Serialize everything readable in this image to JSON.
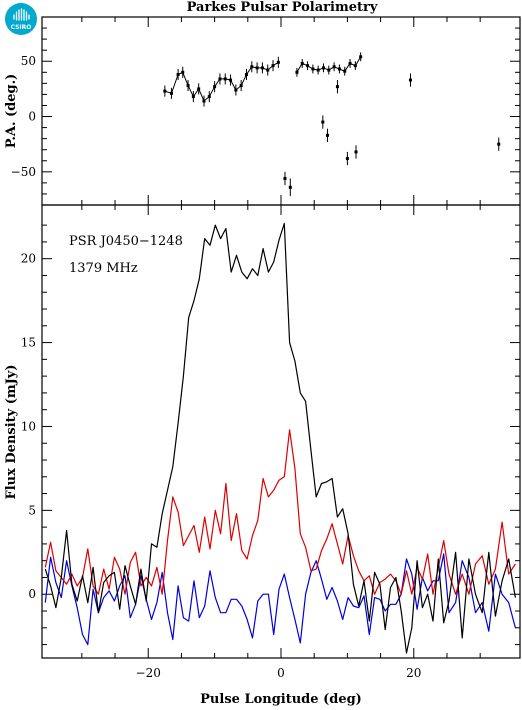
{
  "chart_data": [
    {
      "panel": "top",
      "type": "scatter",
      "title": "Parkes Pulsar Polarimetry",
      "ylabel": "P.A. (deg.)",
      "xlim": [
        -36,
        36
      ],
      "ylim": [
        -80,
        90
      ],
      "yticks": [
        -50,
        0,
        50
      ],
      "yticklabels": [
        "−50",
        "0",
        "50"
      ],
      "colors": {
        "points": "#000000"
      },
      "groups": [
        {
          "x": [
            -17.5,
            -16.5,
            -15.5,
            -14.8,
            -14.0,
            -13.2,
            -12.4,
            -11.6,
            -10.8,
            -10.0,
            -9.2,
            -8.4,
            -7.6,
            -6.8,
            -6.0,
            -5.2,
            -4.4,
            -3.6,
            -2.8,
            -2.0,
            -1.2,
            -0.4
          ],
          "y": [
            23,
            21,
            38,
            40,
            28,
            18,
            25,
            14,
            18,
            27,
            34,
            34,
            33,
            24,
            28,
            38,
            45,
            44,
            44,
            42,
            46,
            49
          ],
          "err": [
            5,
            5,
            5,
            5,
            5,
            5,
            5,
            5,
            5,
            5,
            5,
            5,
            5,
            5,
            5,
            5,
            5,
            5,
            5,
            5,
            5,
            5
          ]
        },
        {
          "x": [
            2.4,
            3.2,
            4.0,
            4.8,
            5.6,
            6.4,
            7.2,
            8.0,
            8.8,
            9.6,
            10.4,
            11.2,
            12.0
          ],
          "y": [
            40,
            48,
            46,
            43,
            42,
            44,
            42,
            45,
            43,
            41,
            48,
            46,
            54
          ],
          "err": [
            4,
            4,
            4,
            4,
            4,
            4,
            4,
            4,
            4,
            4,
            4,
            4,
            4
          ]
        }
      ],
      "isolated": {
        "x": [
          0.6,
          1.4,
          6.3,
          7.0,
          8.5,
          10.0,
          11.3,
          19.5,
          32.8
        ],
        "y": [
          -56,
          -64,
          -5,
          -17,
          27,
          -38,
          -32,
          33,
          -25
        ],
        "err": [
          6,
          8,
          6,
          6,
          6,
          6,
          6,
          6,
          6
        ]
      }
    },
    {
      "panel": "bottom",
      "type": "line",
      "xlabel": "Pulse Longitude (deg)",
      "ylabel": "Flux Density (mJy)",
      "xlim": [
        -36,
        36
      ],
      "ylim": [
        -3.8,
        23.2
      ],
      "xticks": [
        -20,
        0,
        20
      ],
      "xticklabels": [
        "−20",
        "0",
        "20"
      ],
      "yticks": [
        0,
        5,
        10,
        15,
        20
      ],
      "yticklabels": [
        "0",
        "5",
        "10",
        "15",
        "20"
      ],
      "annotations": [
        "PSR J0450−1248",
        "1379 MHz"
      ],
      "series": [
        {
          "color": "#000000",
          "x": [
            -35.5,
            -34.7,
            -33.9,
            -33.1,
            -32.3,
            -31.5,
            -30.7,
            -29.9,
            -29.1,
            -28.3,
            -27.5,
            -26.7,
            -25.9,
            -25.1,
            -24.3,
            -23.5,
            -22.7,
            -21.9,
            -21.1,
            -20.3,
            -19.5,
            -18.7,
            -17.9,
            -17.1,
            -16.3,
            -15.5,
            -14.7,
            -13.9,
            -13.1,
            -12.3,
            -11.5,
            -10.7,
            -9.9,
            -9.1,
            -8.3,
            -7.5,
            -6.7,
            -5.9,
            -5.1,
            -4.3,
            -3.5,
            -2.7,
            -1.9,
            -1.1,
            -0.3,
            0.5,
            1.3,
            2.1,
            2.9,
            3.7,
            4.5,
            5.3,
            6.1,
            6.9,
            7.7,
            8.5,
            9.3,
            10.1,
            10.9,
            11.7,
            12.5,
            13.3,
            14.1,
            14.9,
            15.7,
            16.5,
            17.3,
            18.1,
            18.9,
            19.7,
            20.5,
            21.3,
            22.1,
            22.9,
            23.7,
            24.5,
            25.3,
            26.3,
            27.3,
            28.3,
            29.3,
            30.3,
            31.3,
            32.3,
            33.3,
            34.3,
            35.3
          ],
          "y": [
            1.5,
            0.5,
            -0.8,
            1.0,
            3.8,
            0.6,
            -0.4,
            1.1,
            -0.5,
            1.6,
            -1.1,
            0.7,
            1.1,
            1.3,
            -0.9,
            1.7,
            0.5,
            -0.6,
            1.5,
            -0.4,
            3.0,
            2.8,
            4.8,
            6.2,
            7.6,
            10.2,
            13.0,
            16.5,
            17.5,
            18.8,
            21.2,
            20.8,
            22.0,
            21.2,
            21.8,
            19.2,
            20.2,
            19.2,
            18.8,
            19.4,
            19.0,
            20.6,
            19.2,
            19.8,
            21.1,
            22.1,
            15.0,
            13.9,
            12.0,
            11.5,
            8.6,
            5.8,
            6.6,
            6.7,
            6.9,
            4.6,
            5.1,
            3.6,
            0.6,
            -0.7,
            0.8,
            -1.6,
            1.3,
            0.6,
            -2.1,
            0.4,
            1.0,
            -1.0,
            -3.5,
            -2.0,
            2.0,
            -0.8,
            0.0,
            -1.6,
            2.1,
            -1.7,
            -0.4,
            2.5,
            -2.6,
            2.1,
            0.0,
            -1.1,
            2.5,
            -1.3,
            0.8,
            2.1,
            -0.2
          ]
        },
        {
          "color": "#dd0000",
          "x": [
            -35.5,
            -34.7,
            -33.9,
            -33.1,
            -32.3,
            -31.5,
            -30.7,
            -29.9,
            -29.1,
            -28.3,
            -27.5,
            -26.7,
            -25.9,
            -25.1,
            -24.3,
            -23.5,
            -22.7,
            -21.9,
            -21.1,
            -20.3,
            -19.5,
            -18.7,
            -17.9,
            -17.1,
            -16.3,
            -15.5,
            -14.7,
            -13.9,
            -13.1,
            -12.3,
            -11.5,
            -10.7,
            -9.9,
            -9.1,
            -8.3,
            -7.5,
            -6.7,
            -5.9,
            -5.1,
            -4.3,
            -3.5,
            -2.7,
            -1.9,
            -1.1,
            -0.3,
            0.5,
            1.3,
            2.1,
            2.9,
            3.7,
            4.5,
            5.3,
            6.1,
            6.9,
            7.7,
            8.5,
            9.3,
            10.1,
            10.9,
            11.7,
            12.5,
            13.3,
            14.1,
            14.9,
            15.7,
            16.5,
            17.3,
            18.1,
            18.9,
            19.7,
            20.5,
            21.3,
            22.1,
            22.9,
            23.7,
            24.5,
            25.3,
            26.3,
            27.3,
            28.3,
            29.3,
            30.3,
            31.3,
            32.3,
            33.3,
            34.3,
            35.3
          ],
          "y": [
            1.6,
            3.1,
            1.4,
            1.0,
            0.6,
            1.2,
            0.5,
            1.0,
            2.7,
            0.5,
            0.0,
            1.5,
            0.3,
            2.2,
            1.5,
            0.0,
            1.9,
            2.5,
            0.5,
            1.0,
            0.5,
            1.6,
            0.0,
            3.2,
            5.8,
            4.9,
            2.9,
            3.5,
            4.1,
            2.5,
            4.6,
            2.7,
            5.0,
            3.6,
            6.6,
            3.2,
            4.8,
            2.6,
            2.1,
            3.5,
            4.4,
            6.9,
            5.8,
            6.2,
            6.8,
            7.0,
            9.8,
            7.5,
            3.6,
            2.8,
            1.4,
            1.5,
            2.6,
            3.3,
            4.2,
            3.0,
            1.8,
            3.5,
            2.3,
            1.4,
            0.8,
            1.1,
            0.0,
            0.7,
            0.9,
            1.2,
            0.8,
            0.0,
            1.4,
            0.0,
            1.6,
            0.9,
            2.4,
            0.0,
            1.6,
            3.2,
            1.2,
            0.0,
            1.2,
            0.0,
            1.8,
            2.3,
            0.6,
            1.5,
            4.3,
            1.2,
            1.8
          ]
        },
        {
          "color": "#0000dd",
          "x": [
            -35.5,
            -34.7,
            -33.9,
            -33.1,
            -32.3,
            -31.5,
            -30.7,
            -29.9,
            -29.1,
            -28.3,
            -27.5,
            -26.7,
            -25.9,
            -25.1,
            -24.3,
            -23.5,
            -22.7,
            -21.9,
            -21.1,
            -20.3,
            -19.5,
            -18.7,
            -17.9,
            -17.1,
            -16.3,
            -15.5,
            -14.7,
            -13.9,
            -13.1,
            -12.3,
            -11.5,
            -10.7,
            -9.9,
            -9.1,
            -8.3,
            -7.5,
            -6.7,
            -5.9,
            -5.1,
            -4.3,
            -3.5,
            -2.7,
            -1.9,
            -1.1,
            -0.3,
            0.5,
            1.3,
            2.1,
            2.9,
            3.7,
            4.5,
            5.3,
            6.1,
            6.9,
            7.7,
            8.5,
            9.3,
            10.1,
            10.9,
            11.7,
            12.5,
            13.3,
            14.1,
            14.9,
            15.7,
            16.5,
            17.3,
            18.1,
            18.9,
            19.7,
            20.5,
            21.3,
            22.1,
            22.9,
            23.7,
            24.5,
            25.3,
            26.3,
            27.3,
            28.3,
            29.3,
            30.3,
            31.3,
            32.3,
            33.3,
            34.3,
            35.3
          ],
          "y": [
            -0.5,
            2.2,
            0.7,
            -0.2,
            2.0,
            0.5,
            -0.8,
            -2.4,
            -3.0,
            0.3,
            -1.1,
            -0.2,
            0.2,
            -0.4,
            0.5,
            1.1,
            -1.4,
            -0.6,
            1.1,
            -0.3,
            -1.5,
            -0.5,
            1.3,
            -1.1,
            -2.7,
            0.5,
            -1.4,
            -1.6,
            0.8,
            -1.4,
            -0.7,
            1.4,
            -0.2,
            -1.1,
            -1.1,
            -0.3,
            -0.3,
            -0.7,
            -1.5,
            -2.6,
            -0.4,
            0.0,
            0.0,
            -2.4,
            0.3,
            1.2,
            -0.2,
            -1.5,
            -2.9,
            0.0,
            1.3,
            2.0,
            0.9,
            -0.3,
            0.4,
            -0.4,
            -1.5,
            -0.2,
            -0.7,
            -0.8,
            -0.1,
            -2.4,
            -0.2,
            -0.3,
            -1.0,
            -0.6,
            -0.6,
            0.0,
            2.1,
            1.2,
            -0.9,
            1.0,
            0.2,
            0.8,
            0.8,
            2.4,
            -1.1,
            -0.5,
            2.0,
            1.0,
            -1.1,
            -0.5,
            -2.2,
            1.2,
            0.0,
            -0.5,
            -2.0
          ]
        }
      ]
    }
  ],
  "logo": {
    "text": "CSIRO",
    "color": "#00a9ce"
  }
}
